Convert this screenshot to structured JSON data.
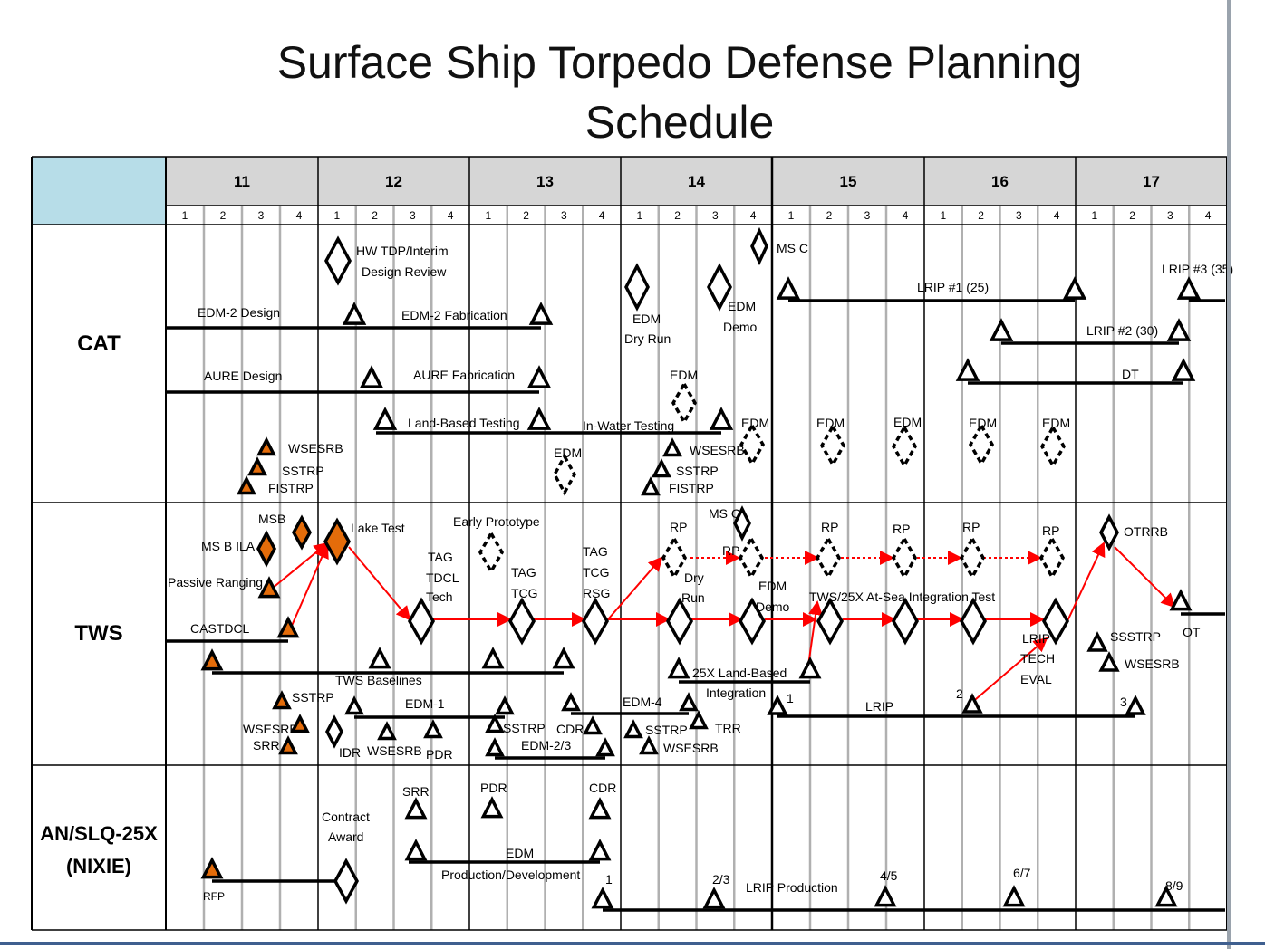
{
  "title": {
    "line1": "Surface Ship Torpedo Defense Planning",
    "line2": "Schedule"
  },
  "colors": {
    "header_corner": "#b7dde8",
    "header_band": "#d6d6d6",
    "accent": "#e46c0a",
    "arrow": "#ff0000",
    "grid": "#b0b0b0",
    "ink": "#000000"
  },
  "years": [
    "11",
    "12",
    "13",
    "14",
    "15",
    "16",
    "17"
  ],
  "quarters": [
    "1",
    "2",
    "3",
    "4"
  ],
  "rows": [
    {
      "id": "cat",
      "label": "CAT"
    },
    {
      "id": "tws",
      "label": "TWS"
    },
    {
      "id": "nixie",
      "label": "AN/SLQ-25X\n(NIXIE)"
    }
  ],
  "labels": {
    "cat": [
      "HW TDP/Interim",
      "Design Review",
      "MS C",
      "LRIP #3 (35)",
      "LRIP #1 (25)",
      "EDM-2 Design",
      "EDM-2 Fabrication",
      "EDM",
      "Dry Run",
      "EDM",
      "Demo",
      "LRIP #2 (30)",
      "AURE Design",
      "AURE Fabrication",
      "EDM",
      "DT",
      "Land-Based Testing",
      "In-Water Testing",
      "EDM",
      "EDM",
      "EDM",
      "EDM",
      "EDM",
      "WSESRB",
      "SSTRP",
      "FISTRP",
      "EDM",
      "WSESRB",
      "SSTRP",
      "FISTRP"
    ],
    "tws": [
      "MSB",
      "Lake Test",
      "Early Prototype",
      "MS C",
      "RP",
      "RP",
      "RP",
      "RP",
      "OTRRB",
      "MS B ILA",
      "TAG",
      "TDCL",
      "Tech",
      "TAG",
      "TCG",
      "TAG",
      "TCG",
      "RSG",
      "RP",
      "Dry",
      "Run",
      "Passive Ranging",
      "EDM",
      "Demo",
      "TWS/25X At-Sea Integration Test",
      "CASTDCL",
      "OT",
      "LRIP",
      "TECH",
      "EVAL",
      "SSSTRP",
      "WSESRB",
      "TWS Baselines",
      "25X Land-Based",
      "Integration",
      "SSTRP",
      "1",
      "LRIP",
      "2",
      "3",
      "EDM-1",
      "EDM-4",
      "WSESRB",
      "SRR",
      "SSTRP",
      "CDR",
      "SSTRP",
      "TRR",
      "IDR",
      "WSESRB",
      "PDR",
      "EDM-2/3",
      "WSESRB"
    ],
    "nixie": [
      "SRR",
      "PDR",
      "CDR",
      "Contract",
      "Award",
      "EDM",
      "Production/Development",
      "1",
      "2/3",
      "LRIP Production",
      "4/5",
      "6/7",
      "8/9",
      "RFP"
    ]
  }
}
